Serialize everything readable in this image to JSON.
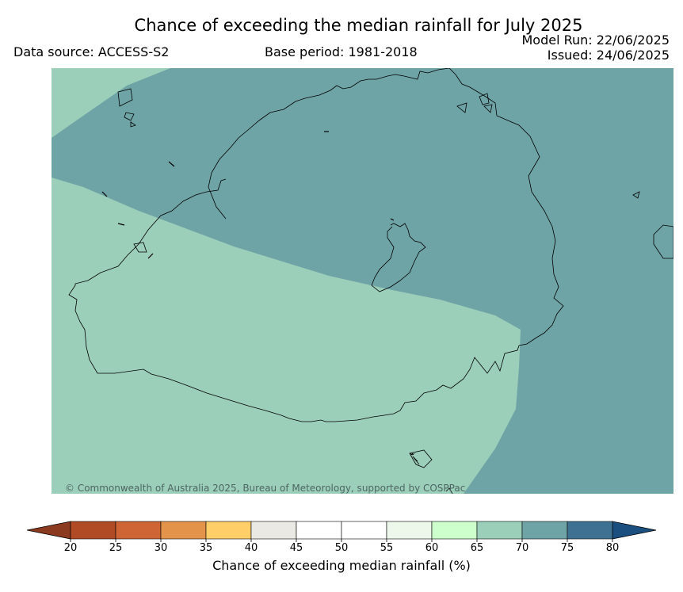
{
  "header": {
    "title": "Chance of exceeding the median rainfall for July 2025",
    "data_source": "Data source: ACCESS-S2",
    "base_period": "Base period: 1981-2018",
    "model_run": "Model Run: 22/06/2025",
    "issued": "Issued: 24/06/2025"
  },
  "map": {
    "copyright": "© Commonwealth of Australia 2025, Bureau of Meteorology, supported by COSPPac",
    "colors": {
      "band_65_70": "#9ccfb9",
      "band_70_75": "#6fa4a7"
    }
  },
  "colorbar": {
    "label": "Chance of exceeding median rainfall (%)",
    "ticks": [
      "20",
      "25",
      "30",
      "35",
      "40",
      "45",
      "50",
      "55",
      "60",
      "65",
      "70",
      "75",
      "80"
    ],
    "under_color": "#8c3a1f",
    "over_color": "#1b4f80",
    "colors": [
      "#b04b26",
      "#cf6535",
      "#e3944a",
      "#ffce69",
      "#ebe9e4",
      "#ffffff",
      "#ffffff",
      "#edf7ea",
      "#ccffcc",
      "#9ccfb9",
      "#6fa4a7",
      "#3f7292"
    ]
  }
}
